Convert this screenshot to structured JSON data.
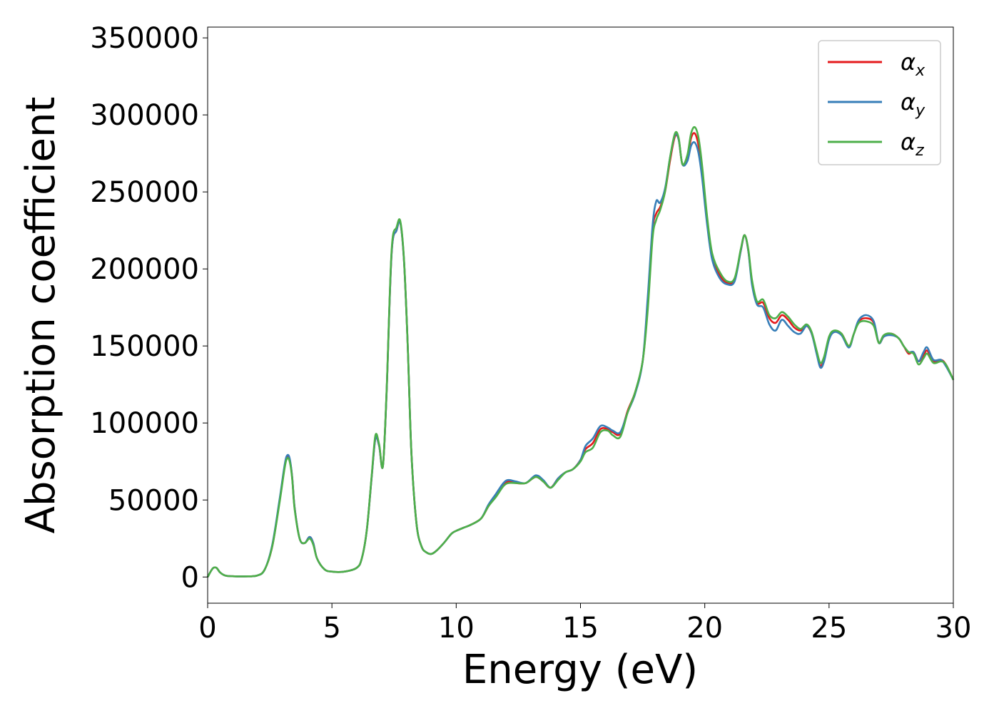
{
  "chart_data": {
    "type": "line",
    "title": "",
    "xlabel": "Energy (eV)",
    "ylabel": "Absorption coefficient",
    "xlim": [
      0,
      30
    ],
    "ylim": [
      -17000,
      357000
    ],
    "xticks": [
      0,
      5,
      10,
      15,
      20,
      25,
      30
    ],
    "yticks": [
      0,
      50000,
      100000,
      150000,
      200000,
      250000,
      300000,
      350000
    ],
    "grid": false,
    "legend_position": "top-right",
    "legend": [
      {
        "symbol": "α",
        "subscript": "x",
        "color": "#e41a1c"
      },
      {
        "symbol": "α",
        "subscript": "y",
        "color": "#377eb8"
      },
      {
        "symbol": "α",
        "subscript": "z",
        "color": "#4daf4a"
      }
    ],
    "x": [
      0,
      0.2,
      0.35,
      0.5,
      0.7,
      1.0,
      1.5,
      2.0,
      2.3,
      2.6,
      2.9,
      3.1,
      3.2,
      3.3,
      3.4,
      3.5,
      3.7,
      3.9,
      4.1,
      4.25,
      4.4,
      4.7,
      5.0,
      5.5,
      6.0,
      6.2,
      6.4,
      6.6,
      6.75,
      6.9,
      7.05,
      7.2,
      7.4,
      7.6,
      7.75,
      7.9,
      8.05,
      8.2,
      8.4,
      8.6,
      8.8,
      9.0,
      9.2,
      9.5,
      9.8,
      10.0,
      10.3,
      10.6,
      11.0,
      11.3,
      11.6,
      11.9,
      12.1,
      12.4,
      12.8,
      13.2,
      13.5,
      13.8,
      14.1,
      14.4,
      14.7,
      15.0,
      15.2,
      15.5,
      15.8,
      16.1,
      16.3,
      16.6,
      16.9,
      17.2,
      17.5,
      17.7,
      17.9,
      18.05,
      18.2,
      18.4,
      18.6,
      18.8,
      18.95,
      19.1,
      19.3,
      19.45,
      19.6,
      19.75,
      19.9,
      20.1,
      20.3,
      20.6,
      20.9,
      21.2,
      21.45,
      21.6,
      21.75,
      21.9,
      22.1,
      22.35,
      22.6,
      22.85,
      23.1,
      23.35,
      23.6,
      23.85,
      24.1,
      24.3,
      24.5,
      24.65,
      24.8,
      25.0,
      25.2,
      25.5,
      25.8,
      26.0,
      26.2,
      26.5,
      26.8,
      27.0,
      27.2,
      27.5,
      27.8,
      28.0,
      28.2,
      28.4,
      28.6,
      28.8,
      28.95,
      29.2,
      29.5,
      29.7,
      30.0
    ],
    "series": [
      {
        "name": "α_x",
        "color": "#e41a1c",
        "values": [
          0,
          5500,
          6000,
          3000,
          1000,
          500,
          400,
          1000,
          5000,
          20000,
          50000,
          72000,
          78000,
          76000,
          65000,
          45000,
          25000,
          22000,
          26000,
          22000,
          12000,
          5000,
          3500,
          3500,
          6000,
          12000,
          30000,
          65000,
          90000,
          85000,
          72000,
          120000,
          210000,
          225000,
          230000,
          205000,
          150000,
          80000,
          35000,
          20000,
          16000,
          15000,
          17000,
          22000,
          28000,
          30000,
          32000,
          34000,
          38000,
          46000,
          53000,
          60000,
          62000,
          61000,
          61000,
          65000,
          62000,
          58000,
          64000,
          68000,
          70000,
          76000,
          83000,
          87000,
          96000,
          96000,
          94000,
          93000,
          108000,
          120000,
          140000,
          175000,
          225000,
          236000,
          240000,
          250000,
          270000,
          286000,
          284000,
          268000,
          272000,
          285000,
          288000,
          280000,
          262000,
          230000,
          208000,
          196000,
          191000,
          193000,
          212000,
          222000,
          212000,
          192000,
          178000,
          178000,
          168000,
          165000,
          170000,
          167000,
          162000,
          160000,
          163000,
          158000,
          146000,
          137000,
          142000,
          155000,
          159000,
          158000,
          150000,
          158000,
          166000,
          168000,
          165000,
          152000,
          156000,
          158000,
          155000,
          150000,
          145000,
          146000,
          140000,
          144000,
          147000,
          140000,
          141000,
          138000,
          128000
        ]
      },
      {
        "name": "α_y",
        "color": "#377eb8",
        "values": [
          0,
          5500,
          6000,
          3000,
          1000,
          500,
          400,
          1000,
          5000,
          21000,
          51000,
          73000,
          79000,
          77000,
          65000,
          45000,
          25000,
          22000,
          26000,
          22000,
          12000,
          5000,
          3500,
          3500,
          6000,
          12000,
          30000,
          65000,
          90000,
          85000,
          72000,
          120000,
          210000,
          225000,
          230000,
          205000,
          150000,
          80000,
          35000,
          20000,
          16000,
          15000,
          17000,
          22000,
          28000,
          30000,
          32000,
          34000,
          38000,
          47000,
          54000,
          61000,
          63000,
          62000,
          61000,
          66000,
          63000,
          58000,
          64000,
          68000,
          70000,
          76000,
          85000,
          90000,
          98000,
          97000,
          95000,
          94000,
          107000,
          119000,
          140000,
          180000,
          228000,
          244000,
          243000,
          252000,
          272000,
          287000,
          284000,
          268000,
          270000,
          280000,
          282000,
          275000,
          258000,
          228000,
          206000,
          194000,
          190000,
          192000,
          212000,
          222000,
          212000,
          190000,
          177000,
          175000,
          164000,
          160000,
          167000,
          163000,
          159000,
          158000,
          163000,
          158000,
          145000,
          136000,
          140000,
          154000,
          159000,
          157000,
          149000,
          158000,
          167000,
          170000,
          166000,
          152000,
          156000,
          157000,
          155000,
          150000,
          146000,
          146000,
          140000,
          146000,
          149000,
          141000,
          141000,
          137000,
          128000
        ]
      },
      {
        "name": "α_z",
        "color": "#4daf4a",
        "values": [
          0,
          5500,
          6000,
          3000,
          1000,
          500,
          400,
          1000,
          5000,
          20000,
          49000,
          71000,
          77000,
          75000,
          64000,
          44000,
          25000,
          22000,
          25000,
          21000,
          12000,
          5000,
          3500,
          3500,
          6000,
          12000,
          30000,
          66000,
          92000,
          86000,
          72000,
          121000,
          212000,
          227000,
          231000,
          206000,
          150000,
          80000,
          35000,
          20000,
          16000,
          15000,
          17000,
          22000,
          28000,
          30000,
          32000,
          34000,
          38000,
          46000,
          52000,
          59000,
          61000,
          61000,
          61000,
          65000,
          62000,
          58000,
          63000,
          68000,
          70000,
          75000,
          81000,
          84000,
          94000,
          95000,
          92000,
          91000,
          107000,
          120000,
          140000,
          172000,
          220000,
          232000,
          238000,
          250000,
          272000,
          288000,
          285000,
          268000,
          274000,
          288000,
          292000,
          285000,
          266000,
          233000,
          210000,
          198000,
          192000,
          194000,
          213000,
          222000,
          213000,
          193000,
          179000,
          180000,
          170000,
          168000,
          172000,
          169000,
          164000,
          161000,
          164000,
          159000,
          147000,
          139000,
          143000,
          156000,
          160000,
          158000,
          150000,
          158000,
          165000,
          166000,
          163000,
          152000,
          157000,
          158000,
          155000,
          150000,
          146000,
          145000,
          138000,
          142000,
          145000,
          139000,
          140000,
          138000,
          128000
        ]
      }
    ]
  }
}
